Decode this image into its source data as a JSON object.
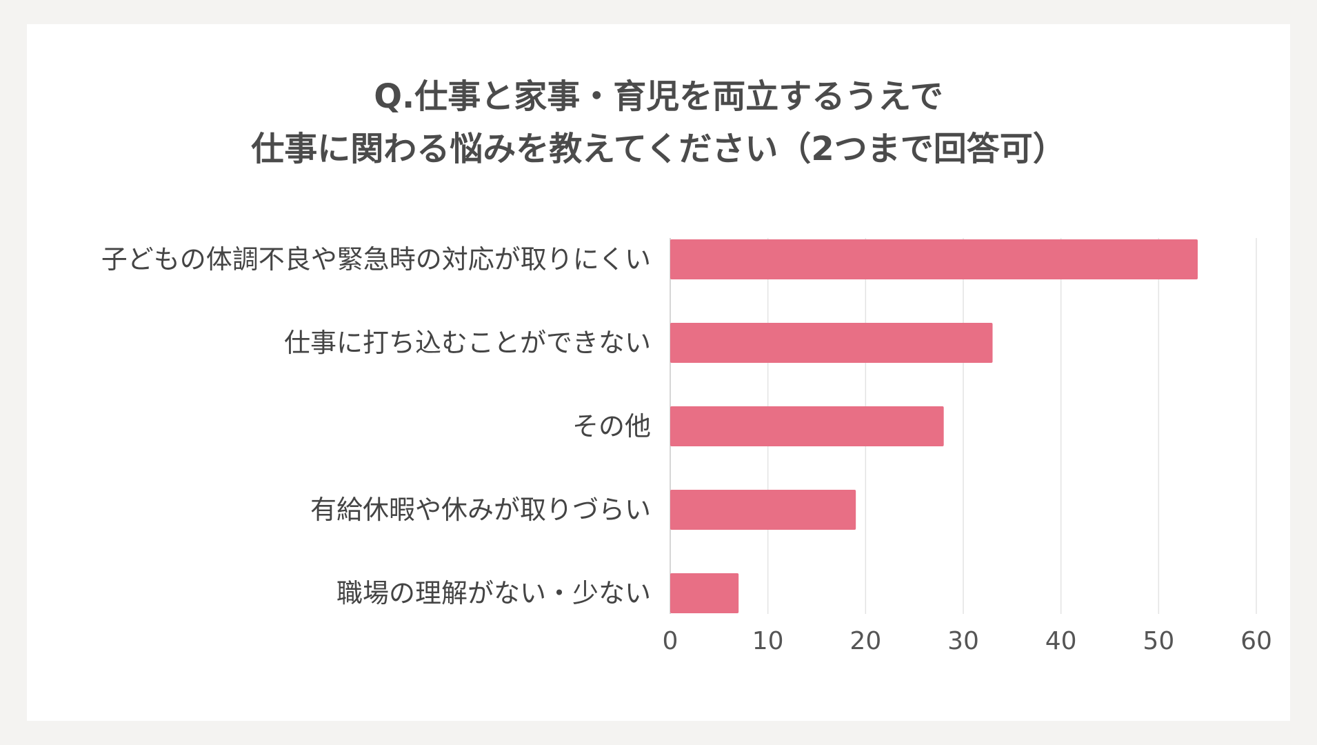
{
  "chart_data": {
    "type": "bar",
    "orientation": "horizontal",
    "title": [
      "Q.仕事と家事・育児を両立するうえで",
      "仕事に関わる悩みを教えてください（2つまで回答可）"
    ],
    "categories": [
      "子どもの体調不良や緊急時の対応が取りにくい",
      "仕事に打ち込むことができない",
      "その他",
      "有給休暇や休みが取りづらい",
      "職場の理解がない・少ない"
    ],
    "values": [
      54,
      33,
      28,
      19,
      7
    ],
    "xlim": [
      0,
      60
    ],
    "xticks": [
      0,
      10,
      20,
      30,
      40,
      50,
      60
    ],
    "bar_color": "#e86f85",
    "grid": true,
    "legend": "none"
  }
}
